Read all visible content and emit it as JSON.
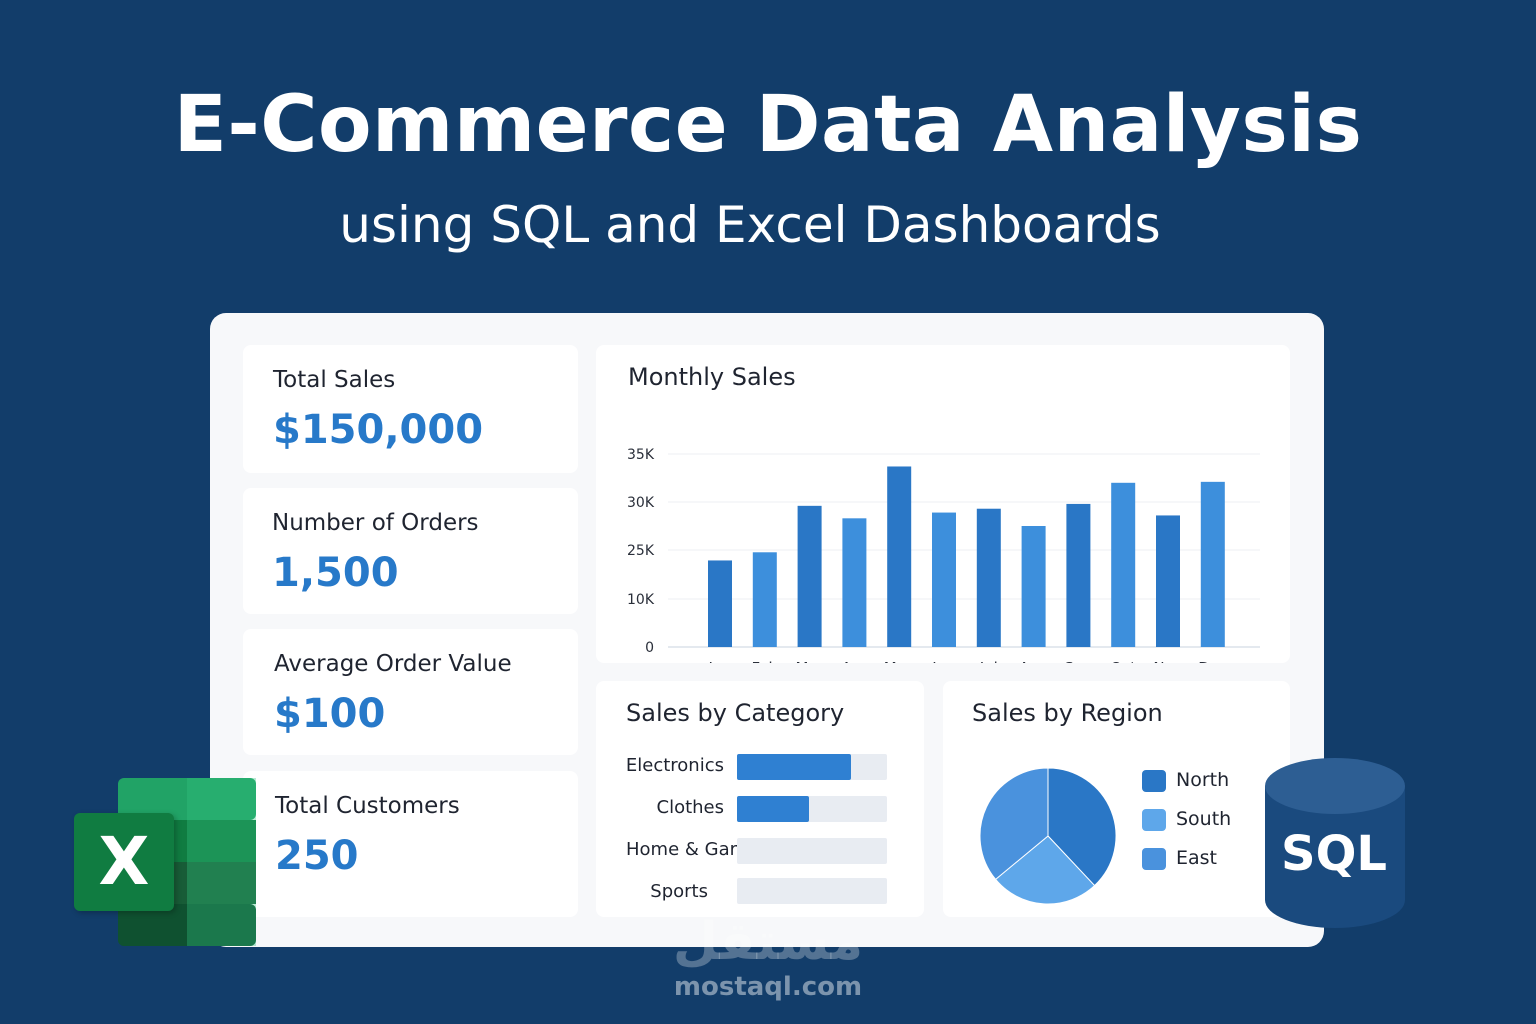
{
  "header": {
    "title": "E-Commerce Data Analysis",
    "subtitle": "using SQL and Excel Dashboards"
  },
  "kpis": [
    {
      "label": "Total Sales",
      "value": "$150,000"
    },
    {
      "label": "Number of Orders",
      "value": "1,500"
    },
    {
      "label": "Average Order Value",
      "value": "$100"
    },
    {
      "label": "Total Customers",
      "value": "250"
    }
  ],
  "colors": {
    "background": "#123d6a",
    "accent": "#2779c9",
    "bar_dark": "#2a77c6",
    "bar_light": "#3d8fdc",
    "track": "#e8ecf2"
  },
  "icons": {
    "excel": "excel-icon",
    "sql": "sql-database-icon"
  },
  "sql_badge": "SQL",
  "excel_badge": "X",
  "watermark": {
    "logo": "مستقل",
    "url": "mostaql.com"
  },
  "chart_data": [
    {
      "type": "bar",
      "title": "Monthly Sales",
      "categories": [
        "Jan",
        "Feb",
        "Mar",
        "Apr",
        "May",
        "Jun",
        "Jul",
        "Aug",
        "Sep",
        "Oct",
        "Nov",
        "Dec"
      ],
      "values": [
        21800,
        24300,
        29600,
        28300,
        33700,
        28900,
        29300,
        27500,
        29800,
        32000,
        28600,
        32100
      ],
      "y_tick_labels": [
        "0",
        "10K",
        "25K",
        "30K",
        "35K"
      ],
      "grid": true
    },
    {
      "type": "bar",
      "orientation": "horizontal",
      "title": "Sales by Category",
      "categories": [
        "Electronics",
        "Clothes",
        "Home & Garden",
        "Sports"
      ],
      "values": [
        0.76,
        0.48,
        0,
        0
      ]
    },
    {
      "type": "pie",
      "title": "Sales by Region",
      "labels": [
        "North",
        "South",
        "East"
      ],
      "values": [
        38,
        26,
        36
      ],
      "colors": [
        "#2a77c6",
        "#5ea7ea",
        "#4a92dd"
      ],
      "legend": "right"
    }
  ]
}
